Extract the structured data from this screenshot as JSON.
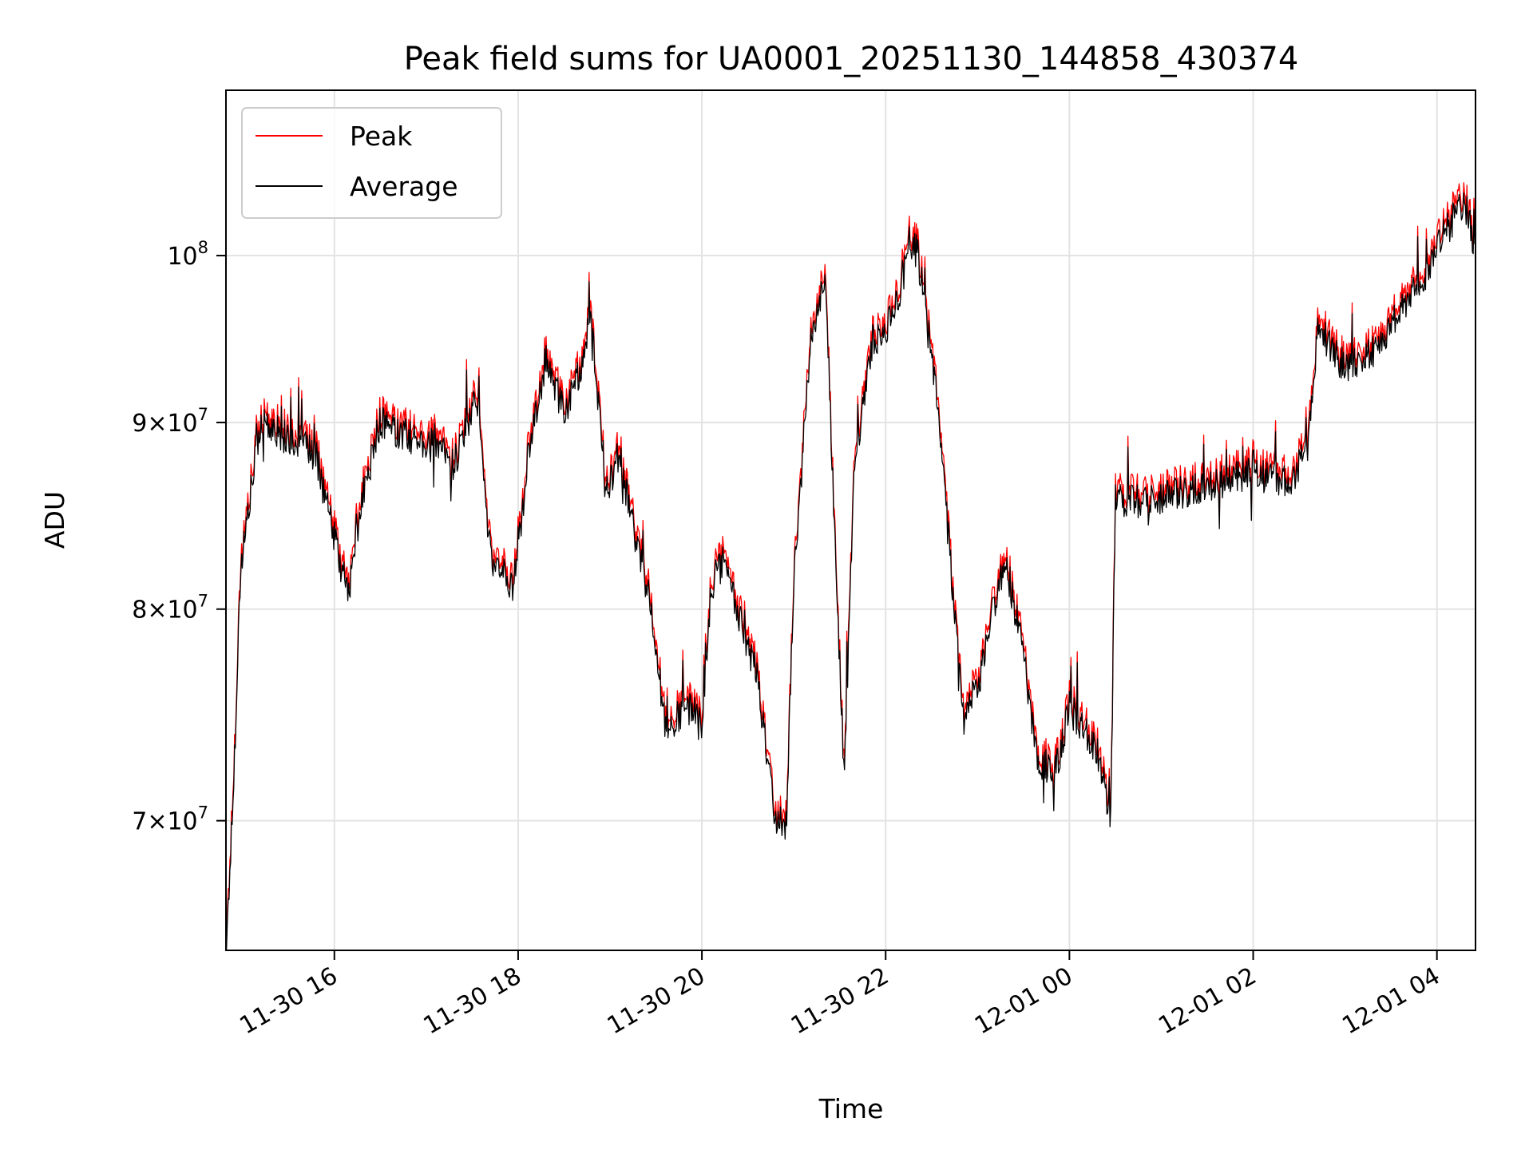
{
  "chart_data": {
    "type": "line",
    "title": "Peak field sums for UA0001_20251130_144858_430374",
    "xlabel": "Time",
    "ylabel": "ADU",
    "y_scale": "log",
    "ylim": [
      64500000,
      111000000
    ],
    "xlim_hours": [
      14.82,
      28.42
    ],
    "grid": true,
    "legend_position": "upper-left",
    "x_ticks": [
      {
        "value": 16,
        "label": "11-30 16"
      },
      {
        "value": 18,
        "label": "11-30 18"
      },
      {
        "value": 20,
        "label": "11-30 20"
      },
      {
        "value": 22,
        "label": "11-30 22"
      },
      {
        "value": 24,
        "label": "12-01 00"
      },
      {
        "value": 26,
        "label": "12-01 02"
      },
      {
        "value": 28,
        "label": "12-01 04"
      }
    ],
    "y_ticks": [
      {
        "value": 70000000,
        "base": "7",
        "exp": "7"
      },
      {
        "value": 80000000,
        "base": "8",
        "exp": "7"
      },
      {
        "value": 90000000,
        "base": "9",
        "exp": "7"
      },
      {
        "value": 100000000,
        "base": "",
        "exp": "8"
      }
    ],
    "series": [
      {
        "name": "Peak",
        "color": "#ff0000",
        "noise": 0.012,
        "offset": 0.002,
        "points": [
          [
            14.82,
            64500000
          ],
          [
            14.9,
            71500000
          ],
          [
            14.98,
            82500000
          ],
          [
            15.2,
            90500000
          ],
          [
            15.5,
            89500000
          ],
          [
            15.8,
            88500000
          ],
          [
            16.0,
            84000000
          ],
          [
            16.15,
            81000000
          ],
          [
            16.3,
            86000000
          ],
          [
            16.5,
            90500000
          ],
          [
            16.8,
            89500000
          ],
          [
            17.1,
            89000000
          ],
          [
            17.3,
            88000000
          ],
          [
            17.55,
            92000000
          ],
          [
            17.7,
            83000000
          ],
          [
            17.95,
            81500000
          ],
          [
            18.1,
            88000000
          ],
          [
            18.3,
            94000000
          ],
          [
            18.5,
            91000000
          ],
          [
            18.65,
            93000000
          ],
          [
            18.8,
            96500000
          ],
          [
            18.95,
            86500000
          ],
          [
            19.1,
            88500000
          ],
          [
            19.3,
            83500000
          ],
          [
            19.45,
            80500000
          ],
          [
            19.6,
            74500000
          ],
          [
            19.85,
            75500000
          ],
          [
            20.0,
            74500000
          ],
          [
            20.1,
            81500000
          ],
          [
            20.25,
            83000000
          ],
          [
            20.4,
            80000000
          ],
          [
            20.6,
            77000000
          ],
          [
            20.8,
            70500000
          ],
          [
            20.92,
            70000000
          ],
          [
            21.0,
            82000000
          ],
          [
            21.2,
            96000000
          ],
          [
            21.35,
            99000000
          ],
          [
            21.45,
            83500000
          ],
          [
            21.55,
            72000000
          ],
          [
            21.65,
            87000000
          ],
          [
            21.85,
            95000000
          ],
          [
            22.0,
            95500000
          ],
          [
            22.15,
            98000000
          ],
          [
            22.25,
            101500000
          ],
          [
            22.35,
            100500000
          ],
          [
            22.55,
            92000000
          ],
          [
            22.7,
            83000000
          ],
          [
            22.85,
            75000000
          ],
          [
            23.0,
            76500000
          ],
          [
            23.15,
            80000000
          ],
          [
            23.3,
            83000000
          ],
          [
            23.5,
            78000000
          ],
          [
            23.65,
            73000000
          ],
          [
            23.85,
            72500000
          ],
          [
            24.0,
            75500000
          ],
          [
            24.15,
            74500000
          ],
          [
            24.3,
            73500000
          ],
          [
            24.45,
            70500000
          ],
          [
            24.5,
            86000000
          ],
          [
            24.8,
            86000000
          ],
          [
            25.2,
            86500000
          ],
          [
            25.6,
            87000000
          ],
          [
            26.0,
            87500000
          ],
          [
            26.4,
            87000000
          ],
          [
            26.6,
            89000000
          ],
          [
            26.7,
            96000000
          ],
          [
            27.0,
            93500000
          ],
          [
            27.3,
            94500000
          ],
          [
            27.6,
            97000000
          ],
          [
            27.9,
            99500000
          ],
          [
            28.1,
            102000000
          ],
          [
            28.3,
            104000000
          ],
          [
            28.42,
            100500000
          ]
        ]
      },
      {
        "name": "Average",
        "color": "#000000",
        "noise": 0.011,
        "offset": -0.004,
        "points": [
          [
            14.82,
            64500000
          ],
          [
            14.9,
            71500000
          ],
          [
            14.98,
            82500000
          ],
          [
            15.2,
            90500000
          ],
          [
            15.5,
            89500000
          ],
          [
            15.8,
            88500000
          ],
          [
            16.0,
            84000000
          ],
          [
            16.15,
            81000000
          ],
          [
            16.3,
            86000000
          ],
          [
            16.5,
            90500000
          ],
          [
            16.8,
            89500000
          ],
          [
            17.1,
            89000000
          ],
          [
            17.3,
            88000000
          ],
          [
            17.55,
            92000000
          ],
          [
            17.7,
            83000000
          ],
          [
            17.95,
            81500000
          ],
          [
            18.1,
            88000000
          ],
          [
            18.3,
            94000000
          ],
          [
            18.5,
            91000000
          ],
          [
            18.65,
            93000000
          ],
          [
            18.8,
            96500000
          ],
          [
            18.95,
            86500000
          ],
          [
            19.1,
            88500000
          ],
          [
            19.3,
            83500000
          ],
          [
            19.45,
            80500000
          ],
          [
            19.6,
            74500000
          ],
          [
            19.85,
            75500000
          ],
          [
            20.0,
            74500000
          ],
          [
            20.1,
            81500000
          ],
          [
            20.25,
            83000000
          ],
          [
            20.4,
            80000000
          ],
          [
            20.6,
            77000000
          ],
          [
            20.8,
            70500000
          ],
          [
            20.92,
            70000000
          ],
          [
            21.0,
            82000000
          ],
          [
            21.2,
            96000000
          ],
          [
            21.35,
            99000000
          ],
          [
            21.45,
            83500000
          ],
          [
            21.55,
            72000000
          ],
          [
            21.65,
            87000000
          ],
          [
            21.85,
            95000000
          ],
          [
            22.0,
            95500000
          ],
          [
            22.15,
            98000000
          ],
          [
            22.25,
            101500000
          ],
          [
            22.35,
            100500000
          ],
          [
            22.55,
            92000000
          ],
          [
            22.7,
            83000000
          ],
          [
            22.85,
            75000000
          ],
          [
            23.0,
            76500000
          ],
          [
            23.15,
            80000000
          ],
          [
            23.3,
            83000000
          ],
          [
            23.5,
            78000000
          ],
          [
            23.65,
            73000000
          ],
          [
            23.85,
            72500000
          ],
          [
            24.0,
            75500000
          ],
          [
            24.15,
            74500000
          ],
          [
            24.3,
            73500000
          ],
          [
            24.45,
            70500000
          ],
          [
            24.5,
            86000000
          ],
          [
            24.8,
            86000000
          ],
          [
            25.2,
            86500000
          ],
          [
            25.6,
            87000000
          ],
          [
            26.0,
            87500000
          ],
          [
            26.4,
            87000000
          ],
          [
            26.6,
            89000000
          ],
          [
            26.7,
            96000000
          ],
          [
            27.0,
            93500000
          ],
          [
            27.3,
            94500000
          ],
          [
            27.6,
            97000000
          ],
          [
            27.9,
            99500000
          ],
          [
            28.1,
            102000000
          ],
          [
            28.3,
            104000000
          ],
          [
            28.42,
            100500000
          ]
        ]
      }
    ]
  }
}
